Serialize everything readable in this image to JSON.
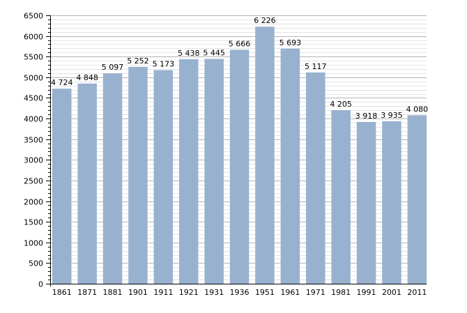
{
  "chart_data": {
    "type": "bar",
    "title": "",
    "xlabel": "",
    "ylabel": "",
    "categories": [
      "1861",
      "1871",
      "1881",
      "1901",
      "1911",
      "1921",
      "1931",
      "1936",
      "1951",
      "1961",
      "1971",
      "1981",
      "1991",
      "2001",
      "2011"
    ],
    "values": [
      4724,
      4848,
      5097,
      5252,
      5173,
      5438,
      5445,
      5666,
      6226,
      5693,
      5117,
      4205,
      3918,
      3935,
      4080
    ],
    "value_labels": [
      "4 724",
      "4 848",
      "5 097",
      "5 252",
      "5 173",
      "5 438",
      "5 445",
      "5 666",
      "6 226",
      "5 693",
      "5 117",
      "4 205",
      "3 918",
      "3 935",
      "4 080"
    ],
    "ylim": [
      0,
      6500
    ],
    "y_ticks": [
      0,
      500,
      1000,
      1500,
      2000,
      2500,
      3000,
      3500,
      4000,
      4500,
      5000,
      5500,
      6000,
      6500
    ],
    "minor_grid_step": 100,
    "grid": true,
    "legend": "none",
    "colors": {
      "bar": "#98b1cf",
      "major_grid": "#b4b4b4",
      "minor_grid": "#e3e3e3",
      "axis": "#000000",
      "text": "#000000"
    }
  }
}
